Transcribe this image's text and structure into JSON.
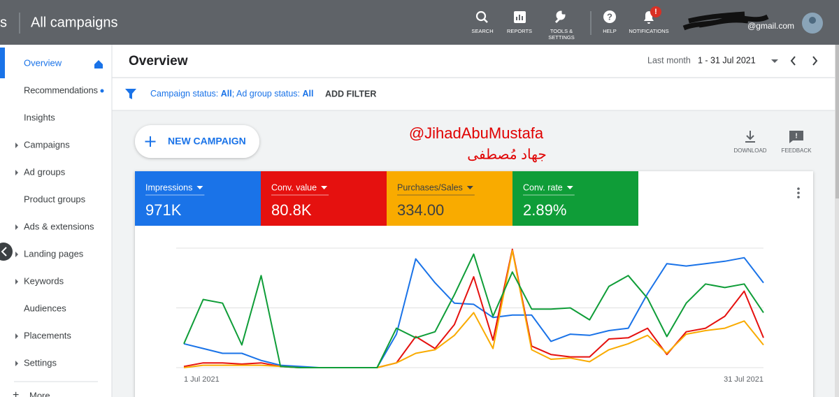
{
  "header": {
    "product": "s",
    "title": "All campaigns",
    "tools": [
      {
        "lines": [
          "SEARCH"
        ]
      },
      {
        "lines": [
          "REPORTS"
        ]
      },
      {
        "lines": [
          "TOOLS &",
          "SETTINGS"
        ]
      },
      {
        "lines": [
          "HELP"
        ]
      },
      {
        "lines": [
          "NOTIFICATIONS"
        ]
      }
    ],
    "notification_badge": "!",
    "account": "@gmail.com"
  },
  "sidebar": {
    "items": [
      {
        "label": "Overview",
        "expandable": false
      },
      {
        "label": "Recommendations",
        "expandable": false
      },
      {
        "label": "Insights",
        "expandable": false
      },
      {
        "label": "Campaigns",
        "expandable": true
      },
      {
        "label": "Ad groups",
        "expandable": true
      },
      {
        "label": "Product groups",
        "expandable": false
      },
      {
        "label": "Ads & extensions",
        "expandable": true
      },
      {
        "label": "Landing pages",
        "expandable": true
      },
      {
        "label": "Keywords",
        "expandable": true
      },
      {
        "label": "Audiences",
        "expandable": false
      },
      {
        "label": "Placements",
        "expandable": true
      },
      {
        "label": "Settings",
        "expandable": true
      }
    ],
    "more": "More"
  },
  "page": {
    "title": "Overview",
    "date_range_label": "Last month",
    "date_range": "1 - 31 Jul 2021"
  },
  "filter": {
    "parts": [
      "Campaign status: ",
      "All",
      "; Ad group status: ",
      "All"
    ],
    "add_filter": "ADD FILTER"
  },
  "actions": {
    "new_campaign": "NEW CAMPAIGN",
    "download": "DOWNLOAD",
    "feedback": "FEEDBACK"
  },
  "watermark": [
    "@JihadAbuMustafa",
    "جهاد مُصطفى"
  ],
  "chart_data": {
    "type": "line",
    "categories": [
      "1 Jul 2021",
      null,
      null,
      null,
      null,
      null,
      null,
      null,
      null,
      null,
      null,
      null,
      null,
      null,
      null,
      null,
      null,
      null,
      null,
      null,
      null,
      null,
      null,
      null,
      null,
      null,
      null,
      null,
      null,
      null,
      "31 Jul 2021"
    ],
    "series": [
      {
        "name": "Impressions",
        "total": "971K",
        "color": "#1a73e8",
        "text_color": "#ffffff",
        "values": [
          20,
          16,
          12,
          12,
          6,
          2,
          1,
          0,
          0,
          0,
          0,
          28,
          91,
          71,
          54,
          53,
          42,
          44,
          44,
          22,
          28,
          27,
          31,
          33,
          62,
          87,
          85,
          87,
          89,
          92,
          71
        ]
      },
      {
        "name": "Conv. value",
        "total": "80.8K",
        "color": "#e5110f",
        "text_color": "#ffffff",
        "values": [
          1,
          4,
          4,
          3,
          4,
          1,
          0,
          0,
          0,
          0,
          0,
          4,
          26,
          16,
          36,
          76,
          23,
          99,
          18,
          11,
          9,
          9,
          24,
          25,
          33,
          11,
          30,
          33,
          43,
          64,
          25
        ]
      },
      {
        "name": "Purchases/Sales",
        "total": "334.00",
        "color": "#f9ab00",
        "text_color": "#3c4043",
        "values": [
          0,
          2,
          2,
          2,
          2,
          1,
          0,
          0,
          0,
          0,
          0,
          4,
          12,
          15,
          27,
          46,
          16,
          98,
          15,
          7,
          8,
          5,
          15,
          20,
          27,
          12,
          28,
          31,
          33,
          39,
          19
        ]
      },
      {
        "name": "Conv. rate",
        "total": "2.89%",
        "color": "#0f9d38",
        "text_color": "#ffffff",
        "values": [
          20,
          57,
          54,
          19,
          77,
          1,
          0,
          0,
          0,
          0,
          0,
          33,
          25,
          30,
          61,
          95,
          43,
          80,
          49,
          49,
          50,
          40,
          68,
          77,
          58,
          26,
          54,
          70,
          67,
          70,
          46
        ]
      }
    ],
    "ylim": [
      0,
      100
    ],
    "yticks": [
      0,
      50,
      100
    ],
    "grid": true
  }
}
